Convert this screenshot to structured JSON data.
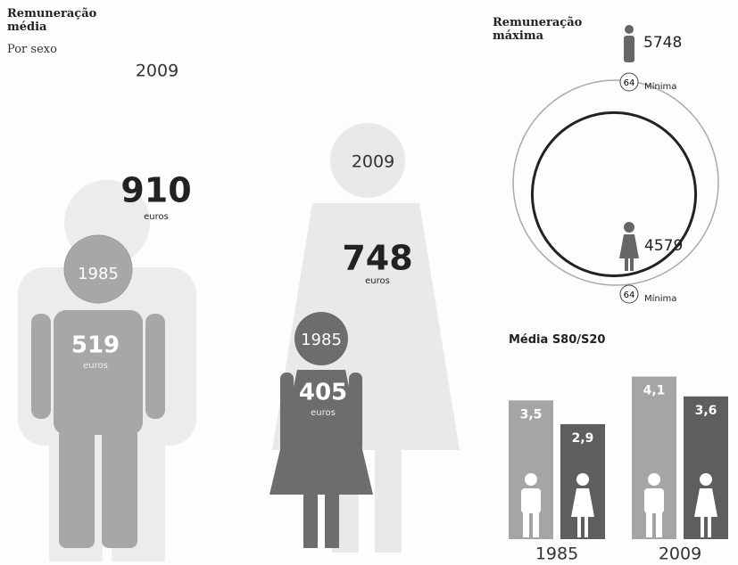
{
  "average_pay": {
    "title": "Remuneração média",
    "subtitle": "Por sexo",
    "men": [
      {
        "year": "2009",
        "value": 910,
        "unit": "euros"
      },
      {
        "year": "1985",
        "value": 519,
        "unit": "euros"
      }
    ],
    "women": [
      {
        "year": "2009",
        "value": 748,
        "unit": "euros"
      },
      {
        "year": "1985",
        "value": 405,
        "unit": "euros"
      }
    ]
  },
  "max_pay": {
    "title": "Remuneração máxima",
    "entries": [
      {
        "value": 5748,
        "minimum": 64,
        "minimum_label": "Mínima"
      },
      {
        "value": 4579,
        "minimum": 64,
        "minimum_label": "Mínima"
      }
    ]
  },
  "s80_s20": {
    "title": "Média S80/S20",
    "groups": [
      {
        "year": "1985",
        "values": [
          3.5,
          2.9
        ],
        "value_labels": [
          "3,5",
          "2,9"
        ]
      },
      {
        "year": "2009",
        "values": [
          4.1,
          3.6
        ],
        "value_labels": [
          "4,1",
          "3,6"
        ]
      }
    ]
  }
}
